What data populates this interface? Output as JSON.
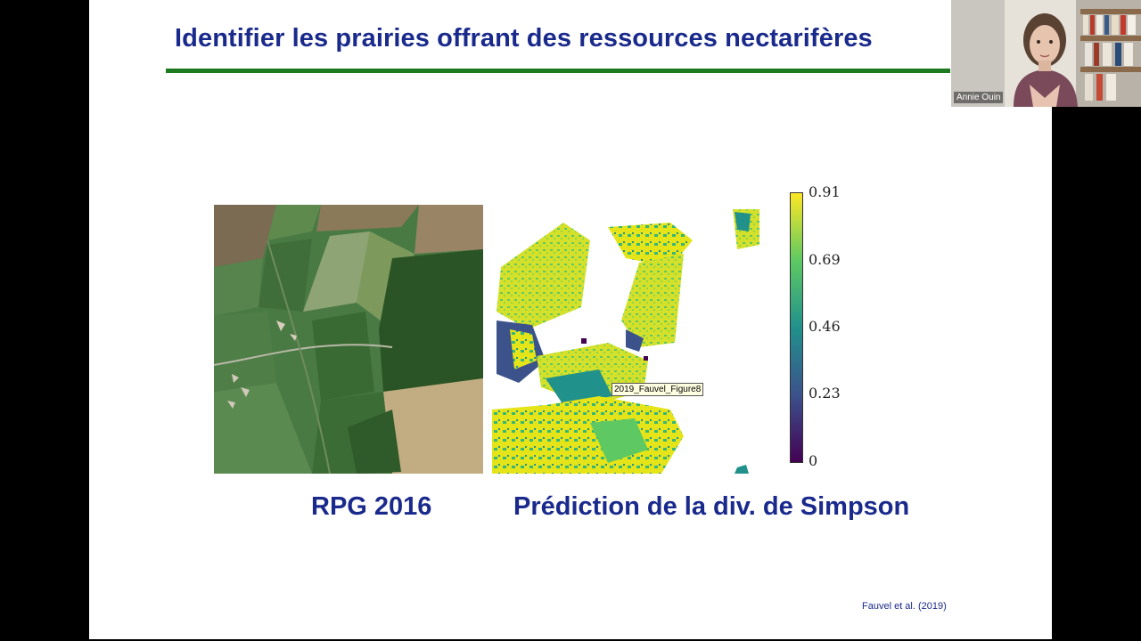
{
  "slide": {
    "title": "Identifier les prairies offrant des ressources nectarifères",
    "caption_left": "RPG 2016",
    "caption_right": "Prédiction de la div. de Simpson",
    "tooltip": "2019_Fauvel_Figure8",
    "citation": "Fauvel et al. (2019)",
    "colorbar_ticks": [
      "0.91",
      "0.69",
      "0.46",
      "0.23",
      "0"
    ]
  },
  "webcam": {
    "participant_name": "Annie Ouin"
  },
  "colors": {
    "title": "#1a2a8c",
    "rule": "#1e7a1e",
    "viridis_low": "#440154",
    "viridis_high": "#fde725"
  }
}
